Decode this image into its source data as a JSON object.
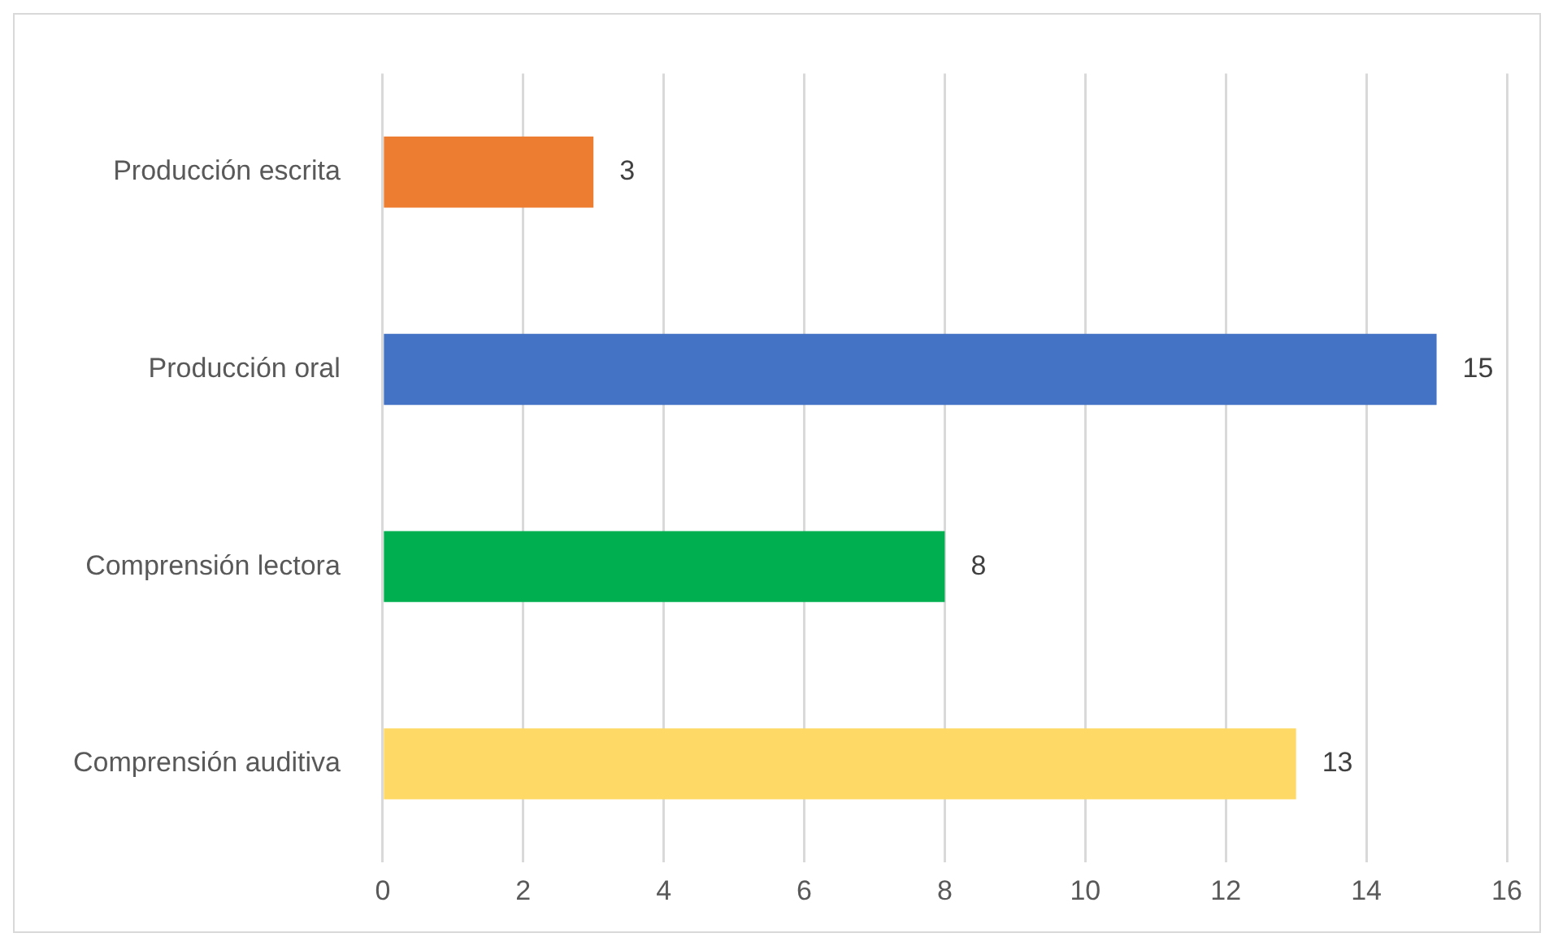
{
  "chart_data": {
    "type": "bar",
    "orientation": "horizontal",
    "categories": [
      "Producción escrita",
      "Producción oral",
      "Comprensión lectora",
      "Comprensión auditiva"
    ],
    "values": [
      3,
      15,
      8,
      13
    ],
    "colors": [
      "#ed7d31",
      "#4472c4",
      "#00b050",
      "#ffd966"
    ],
    "xlim": [
      0,
      16
    ],
    "xticks": [
      0,
      2,
      4,
      6,
      8,
      10,
      12,
      14,
      16
    ],
    "grid": "x",
    "legend": false,
    "data_labels": true
  }
}
